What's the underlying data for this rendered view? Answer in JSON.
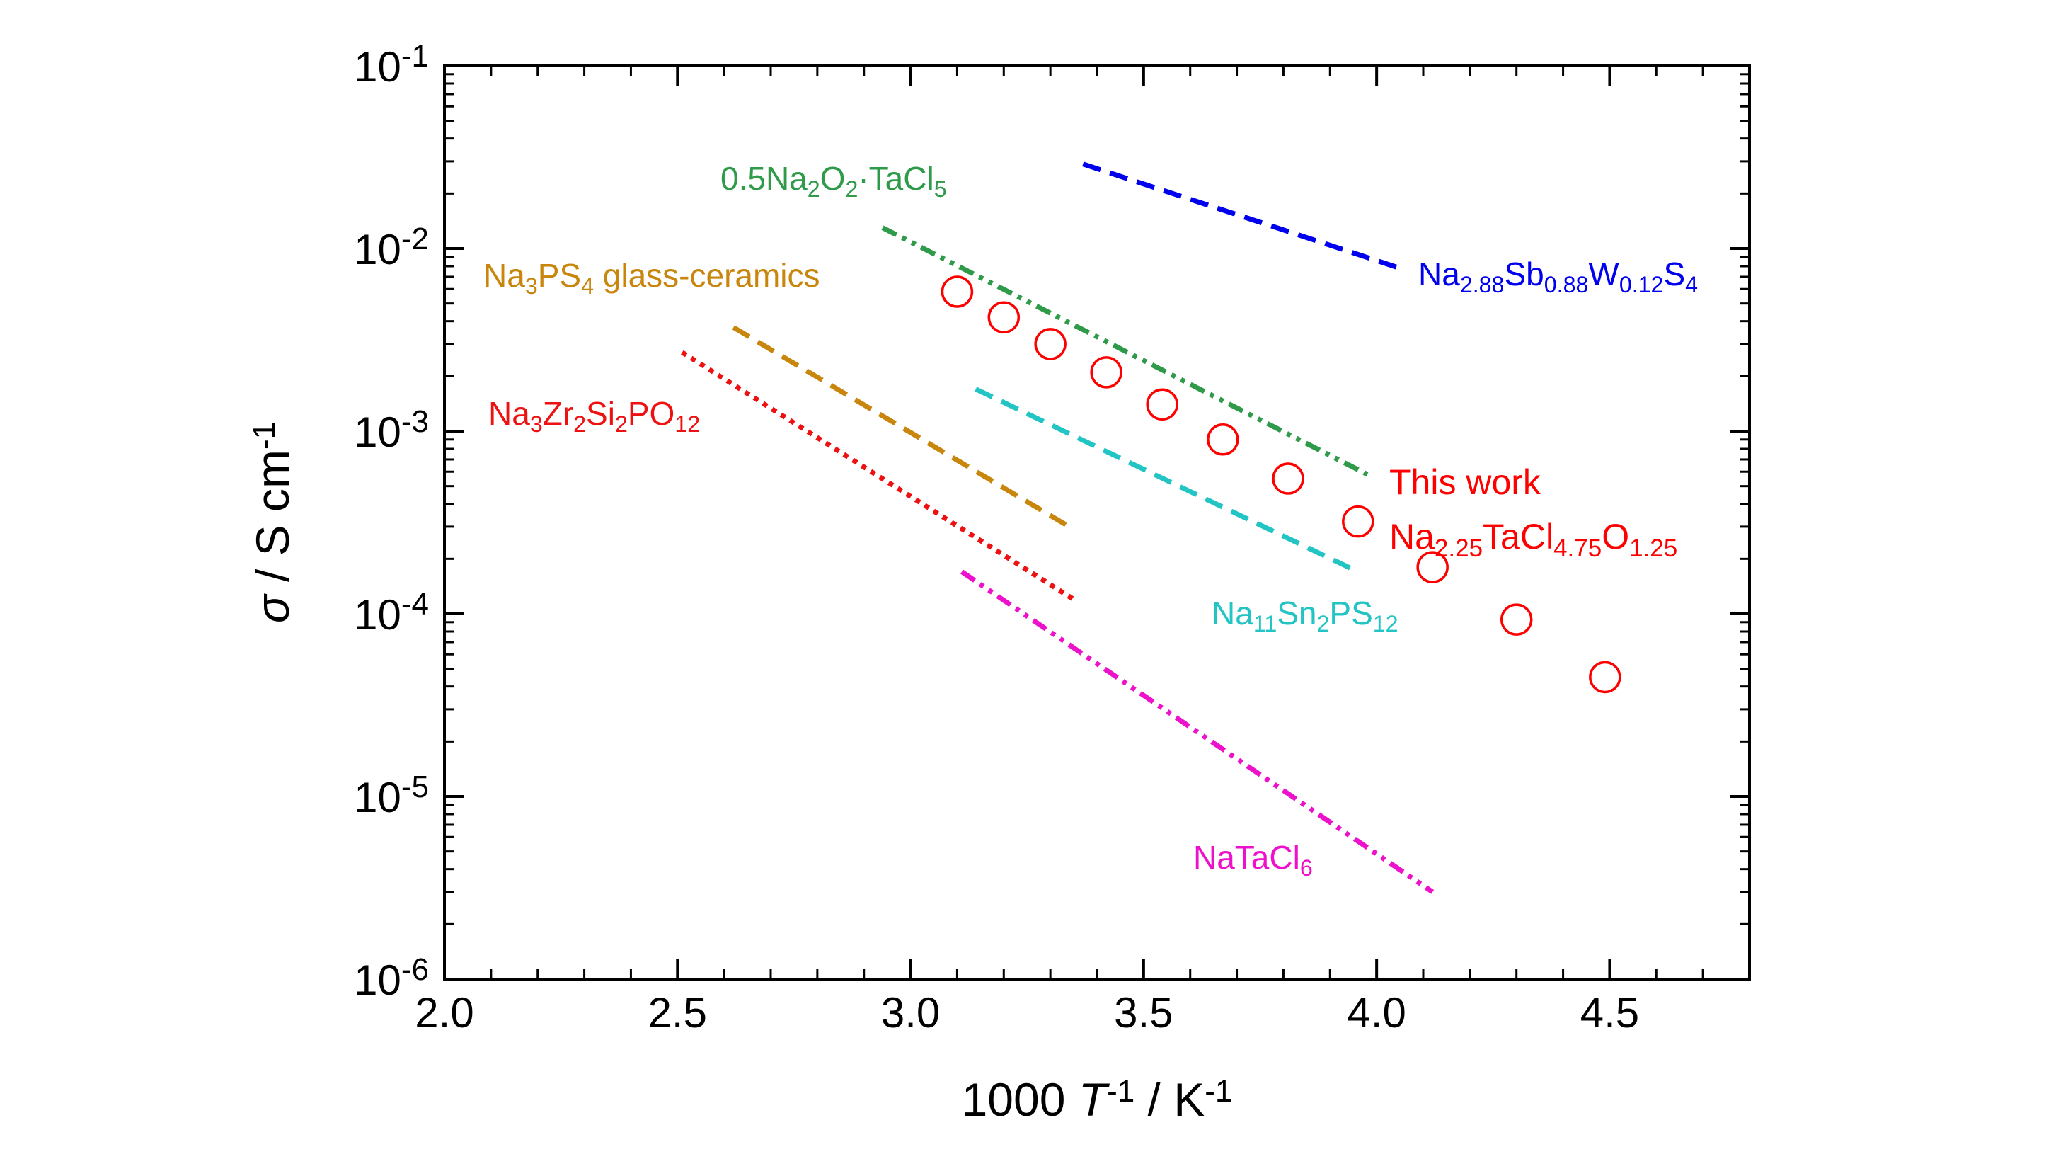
{
  "chart_data": {
    "type": "scatter",
    "xlabel": {
      "pre": "1000 ",
      "var": "T",
      "var_sup": "-1",
      "unit": " / K",
      "unit_sup": "-1"
    },
    "ylabel": {
      "var": "σ",
      "unit": " / S cm",
      "unit_sup": "-1"
    },
    "xlim": [
      2.0,
      4.8
    ],
    "ylim": [
      1e-06,
      0.1
    ],
    "yscale": "log",
    "x_ticks": [
      "2.0",
      "2.5",
      "3.0",
      "3.5",
      "4.0",
      "4.5"
    ],
    "y_ticks": [
      {
        "base": "10",
        "exp": "-6"
      },
      {
        "base": "10",
        "exp": "-5"
      },
      {
        "base": "10",
        "exp": "-4"
      },
      {
        "base": "10",
        "exp": "-3"
      },
      {
        "base": "10",
        "exp": "-2"
      },
      {
        "base": "10",
        "exp": "-1"
      }
    ],
    "this_work": {
      "label_line1": "This work",
      "label_parts": [
        {
          "t": "Na",
          "s": ""
        },
        {
          "t": "2.25",
          "s": "sub"
        },
        {
          "t": "TaCl",
          "s": ""
        },
        {
          "t": "4.75",
          "s": "sub"
        },
        {
          "t": "O",
          "s": ""
        },
        {
          "t": "1.25",
          "s": "sub"
        }
      ],
      "color": "#ff0000",
      "x": [
        3.1,
        3.2,
        3.3,
        3.42,
        3.54,
        3.67,
        3.81,
        3.96,
        4.12,
        4.3,
        4.49
      ],
      "y": [
        0.0058,
        0.0042,
        0.003,
        0.0021,
        0.0014,
        0.0009,
        0.00055,
        0.00032,
        0.00018,
        9.3e-05,
        4.5e-05
      ]
    },
    "series": [
      {
        "label_parts": [
          {
            "t": "Na",
            "s": ""
          },
          {
            "t": "2.88",
            "s": "sub"
          },
          {
            "t": "Sb",
            "s": ""
          },
          {
            "t": "0.88",
            "s": "sub"
          },
          {
            "t": "W",
            "s": ""
          },
          {
            "t": "0.12",
            "s": "sub"
          },
          {
            "t": "S",
            "s": ""
          },
          {
            "t": "4",
            "s": "sub"
          }
        ],
        "color": "#0000ee",
        "style": "dashed",
        "x": [
          3.37,
          4.05
        ],
        "y": [
          0.029,
          0.0078
        ]
      },
      {
        "label_parts": [
          {
            "t": "0.5Na",
            "s": ""
          },
          {
            "t": "2",
            "s": "sub"
          },
          {
            "t": "O",
            "s": ""
          },
          {
            "t": "2",
            "s": "sub"
          },
          {
            "t": "·TaCl",
            "s": ""
          },
          {
            "t": "5",
            "s": "sub"
          }
        ],
        "color": "#2e9a4a",
        "style": "dashdotdot",
        "x": [
          2.94,
          3.98
        ],
        "y": [
          0.013,
          0.00058
        ]
      },
      {
        "label_parts": [
          {
            "t": "Na",
            "s": ""
          },
          {
            "t": "3",
            "s": "sub"
          },
          {
            "t": "PS",
            "s": ""
          },
          {
            "t": "4",
            "s": "sub"
          },
          {
            "t": " glass-ceramics",
            "s": ""
          }
        ],
        "color": "#c8860d",
        "style": "dashed",
        "x": [
          2.62,
          3.35
        ],
        "y": [
          0.0037,
          0.00029
        ]
      },
      {
        "label_parts": [
          {
            "t": "Na",
            "s": ""
          },
          {
            "t": "3",
            "s": "sub"
          },
          {
            "t": "Zr",
            "s": ""
          },
          {
            "t": "2",
            "s": "sub"
          },
          {
            "t": "Si",
            "s": ""
          },
          {
            "t": "2",
            "s": "sub"
          },
          {
            "t": "PO",
            "s": ""
          },
          {
            "t": "12",
            "s": "sub"
          }
        ],
        "color": "#ee1111",
        "style": "dotted",
        "x": [
          2.51,
          3.35
        ],
        "y": [
          0.0027,
          0.00012
        ]
      },
      {
        "label_parts": [
          {
            "t": "Na",
            "s": ""
          },
          {
            "t": "11",
            "s": "sub"
          },
          {
            "t": "Sn",
            "s": ""
          },
          {
            "t": "2",
            "s": "sub"
          },
          {
            "t": "PS",
            "s": ""
          },
          {
            "t": "12",
            "s": "sub"
          }
        ],
        "color": "#22c4c4",
        "style": "dashed",
        "x": [
          3.14,
          3.96
        ],
        "y": [
          0.0017,
          0.00017
        ]
      },
      {
        "label_parts": [
          {
            "t": "NaTaCl",
            "s": ""
          },
          {
            "t": "6",
            "s": "sub"
          }
        ],
        "color": "#ee11cc",
        "style": "dashdotdot",
        "x": [
          3.11,
          4.12
        ],
        "y": [
          0.00017,
          3e-06
        ]
      }
    ]
  }
}
